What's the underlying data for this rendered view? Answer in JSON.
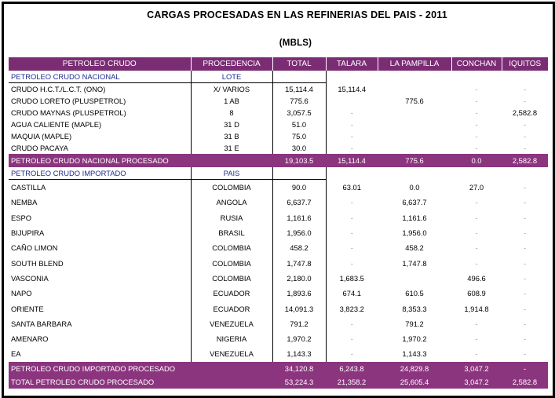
{
  "title": "CARGAS PROCESADAS EN LAS REFINERIAS DEL PAIS - 2011",
  "unit": "(MBLS)",
  "headers": [
    "PETROLEO CRUDO",
    "PROCEDENCIA",
    "TOTAL",
    "TALARA",
    "LA PAMPILLA",
    "CONCHAN",
    "IQUITOS"
  ],
  "nacional": {
    "label": "PETROLEO CRUDO NACIONAL",
    "col_label": "LOTE",
    "rows": [
      {
        "name": "CRUDO H.C.T./L.C.T. (ONO)",
        "proc": "X/ VARIOS",
        "total": "15,114.4",
        "talara": "15,114.4",
        "pampilla": "",
        "conchan": "-",
        "iquitos": "-"
      },
      {
        "name": "CRUDO LORETO (PLUSPETROL)",
        "proc": "1 AB",
        "total": "775.6",
        "talara": "",
        "pampilla": "775.6",
        "conchan": "-",
        "iquitos": "-"
      },
      {
        "name": "CRUDO MAYNAS (PLUSPETROL)",
        "proc": "8",
        "total": "3,057.5",
        "talara": "-",
        "pampilla": "",
        "conchan": "-",
        "iquitos": "2,582.8"
      },
      {
        "name": "AGUA CALIENTE (MAPLE)",
        "proc": "31 D",
        "total": "51.0",
        "talara": "-",
        "pampilla": "",
        "conchan": "-",
        "iquitos": "-"
      },
      {
        "name": "MAQUIA (MAPLE)",
        "proc": "31 B",
        "total": "75.0",
        "talara": "-",
        "pampilla": "",
        "conchan": "-",
        "iquitos": "-"
      },
      {
        "name": "CRUDO PACAYA",
        "proc": "31 E",
        "total": "30.0",
        "talara": "-",
        "pampilla": "",
        "conchan": "-",
        "iquitos": "-"
      }
    ],
    "total": {
      "name": "PETROLEO CRUDO NACIONAL PROCESADO",
      "proc": "",
      "total": "19,103.5",
      "talara": "15,114.4",
      "pampilla": "775.6",
      "conchan": "0.0",
      "iquitos": "2,582.8"
    }
  },
  "importado": {
    "label": "PETROLEO CRUDO IMPORTADO",
    "col_label": "PAIS",
    "rows": [
      {
        "name": "CASTILLA",
        "proc": "COLOMBIA",
        "total": "90.0",
        "talara": "63.01",
        "pampilla": "0.0",
        "conchan": "27.0",
        "iquitos": "-"
      },
      {
        "name": "NEMBA",
        "proc": "ANGOLA",
        "total": "6,637.7",
        "talara": "-",
        "pampilla": "6,637.7",
        "conchan": "-",
        "iquitos": "-"
      },
      {
        "name": "ESPO",
        "proc": "RUSIA",
        "total": "1,161.6",
        "talara": "-",
        "pampilla": "1,161.6",
        "conchan": "-",
        "iquitos": "-"
      },
      {
        "name": "BIJUPIRA",
        "proc": "BRASIL",
        "total": "1,956.0",
        "talara": "-",
        "pampilla": "1,956.0",
        "conchan": "-",
        "iquitos": "-"
      },
      {
        "name": "CAÑO LIMON",
        "proc": "COLOMBIA",
        "total": "458.2",
        "talara": "-",
        "pampilla": "458.2",
        "conchan": "-",
        "iquitos": "-"
      },
      {
        "name": "SOUTH BLEND",
        "proc": "COLOMBIA",
        "total": "1,747.8",
        "talara": "-",
        "pampilla": "1,747.8",
        "conchan": "-",
        "iquitos": "-"
      },
      {
        "name": "VASCONIA",
        "proc": "COLOMBIA",
        "total": "2,180.0",
        "talara": "1,683.5",
        "pampilla": "",
        "conchan": "496.6",
        "iquitos": "-"
      },
      {
        "name": "NAPO",
        "proc": "ECUADOR",
        "total": "1,893.6",
        "talara": "674.1",
        "pampilla": "610.5",
        "conchan": "608.9",
        "iquitos": "-"
      },
      {
        "name": "ORIENTE",
        "proc": "ECUADOR",
        "total": "14,091.3",
        "talara": "3,823.2",
        "pampilla": "8,353.3",
        "conchan": "1,914.8",
        "iquitos": "-"
      },
      {
        "name": "SANTA BARBARA",
        "proc": "VENEZUELA",
        "total": "791.2",
        "talara": "-",
        "pampilla": "791.2",
        "conchan": "-",
        "iquitos": "-"
      },
      {
        "name": "AMENARO",
        "proc": "NIGERIA",
        "total": "1,970.2",
        "talara": "-",
        "pampilla": "1,970.2",
        "conchan": "-",
        "iquitos": "-"
      },
      {
        "name": "EA",
        "proc": "VENEZUELA",
        "total": "1,143.3",
        "talara": "-",
        "pampilla": "1,143.3",
        "conchan": "-",
        "iquitos": "-"
      }
    ],
    "total": {
      "name": "PETROLEO CRUDO IMPORTADO PROCESADO",
      "proc": "",
      "total": "34,120.8",
      "talara": "6,243.8",
      "pampilla": "24,829.8",
      "conchan": "3,047.2",
      "iquitos": "-"
    }
  },
  "grand_total": {
    "name": "TOTAL PETROLEO CRUDO PROCESADO",
    "proc": "",
    "total": "53,224.3",
    "talara": "21,358.2",
    "pampilla": "25,605.4",
    "conchan": "3,047.2",
    "iquitos": "2,582.8"
  },
  "colors": {
    "header_bg": "#7b2d74",
    "total_bg": "#8c357f",
    "section_text": "#1f2b8f"
  }
}
